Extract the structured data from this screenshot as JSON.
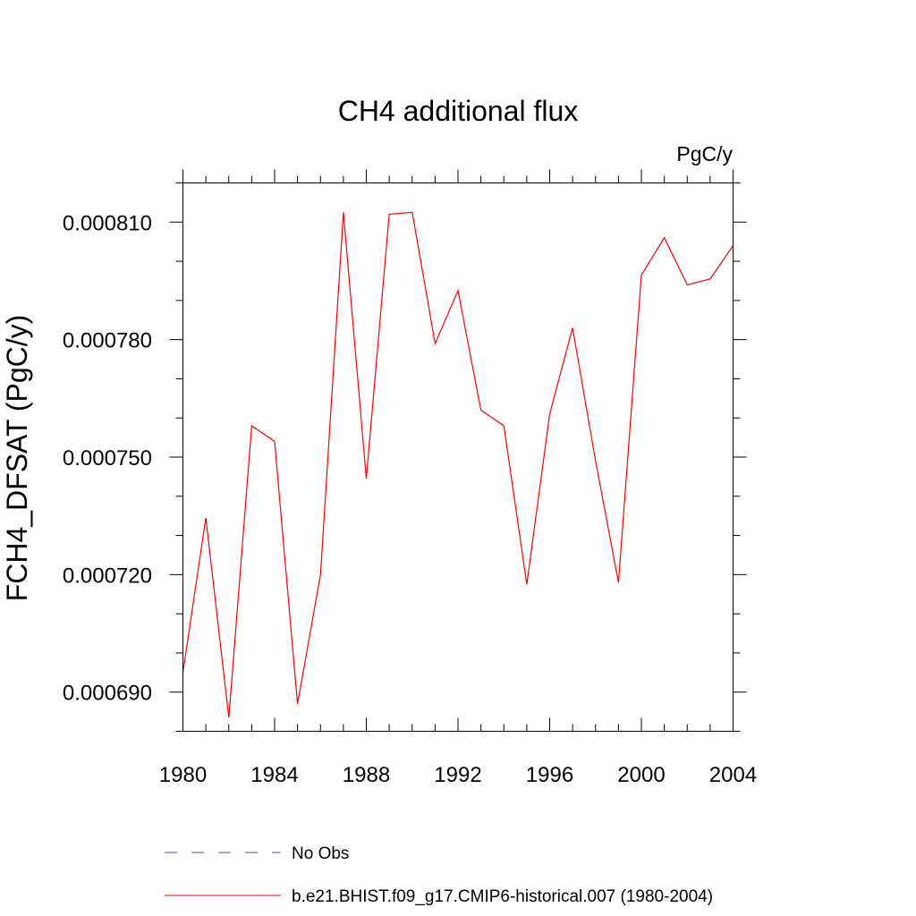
{
  "chart_data": {
    "type": "line",
    "title": "CH4 additional flux",
    "units_label": "PgC/y",
    "ylabel": "FCH4_DFSAT  (PgC/y)",
    "xlabel": "",
    "xlim": [
      1980,
      2004
    ],
    "ylim": [
      0.00068,
      0.00082
    ],
    "x_ticks": [
      1980,
      1984,
      1988,
      1992,
      1996,
      2000,
      2004
    ],
    "x_tick_labels": [
      "1980",
      "1984",
      "1988",
      "1992",
      "1996",
      "2000",
      "2004"
    ],
    "y_ticks": [
      0.00069,
      0.00072,
      0.00075,
      0.00078,
      0.00081
    ],
    "y_tick_labels": [
      "0.000690",
      "0.000720",
      "0.000750",
      "0.000780",
      "0.000810"
    ],
    "grid": false,
    "legend_position": "bottom",
    "series": [
      {
        "name": "b.e21.BHIST.f09_g17.CMIP6-historical.007 (1980-2004)",
        "color": "#ff0000",
        "style": "solid",
        "x": [
          1980,
          1981,
          1982,
          1983,
          1984,
          1985,
          1986,
          1987,
          1988,
          1989,
          1990,
          1991,
          1992,
          1993,
          1994,
          1995,
          1996,
          1997,
          1998,
          1999,
          2000,
          2001,
          2002,
          2003,
          2004
        ],
        "y": [
          0.000695,
          0.0007345,
          0.0006835,
          0.000758,
          0.000754,
          0.000687,
          0.00072,
          0.0008125,
          0.0007445,
          0.000812,
          0.0008125,
          0.000779,
          0.0007925,
          0.000762,
          0.000758,
          0.0007175,
          0.000761,
          0.000783,
          0.000749,
          0.000718,
          0.0007965,
          0.000806,
          0.000794,
          0.0007955,
          0.000804
        ]
      }
    ],
    "legend": [
      {
        "label": "No Obs",
        "color": "#4b4bb4",
        "style": "dashed"
      },
      {
        "label": "b.e21.BHIST.f09_g17.CMIP6-historical.007 (1980-2004)",
        "color": "#ff0000",
        "style": "solid"
      }
    ]
  }
}
